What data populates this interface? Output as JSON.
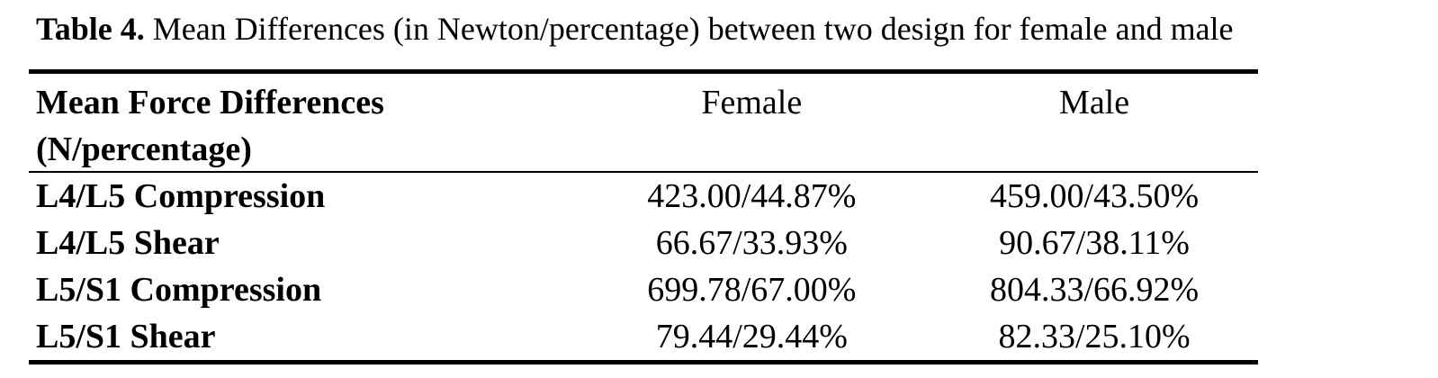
{
  "caption": {
    "label": "Table 4.",
    "text": " Mean Differences (in Newton/percentage) between two design for female and male"
  },
  "table": {
    "header": {
      "col1_line1": "Mean Force Differences",
      "col1_line2": "(N/percentage)",
      "col2": "Female",
      "col3": "Male"
    },
    "rows": [
      {
        "measure": "L4/L5 Compression",
        "female": "423.00/44.87%",
        "male": "459.00/43.50%"
      },
      {
        "measure": "L4/L5 Shear",
        "female": "66.67/33.93%",
        "male": "90.67/38.11%"
      },
      {
        "measure": "L5/S1 Compression",
        "female": "699.78/67.00%",
        "male": "804.33/66.92%"
      },
      {
        "measure": "L5/S1 Shear",
        "female": "79.44/29.44%",
        "male": "82.33/25.10%"
      }
    ]
  }
}
